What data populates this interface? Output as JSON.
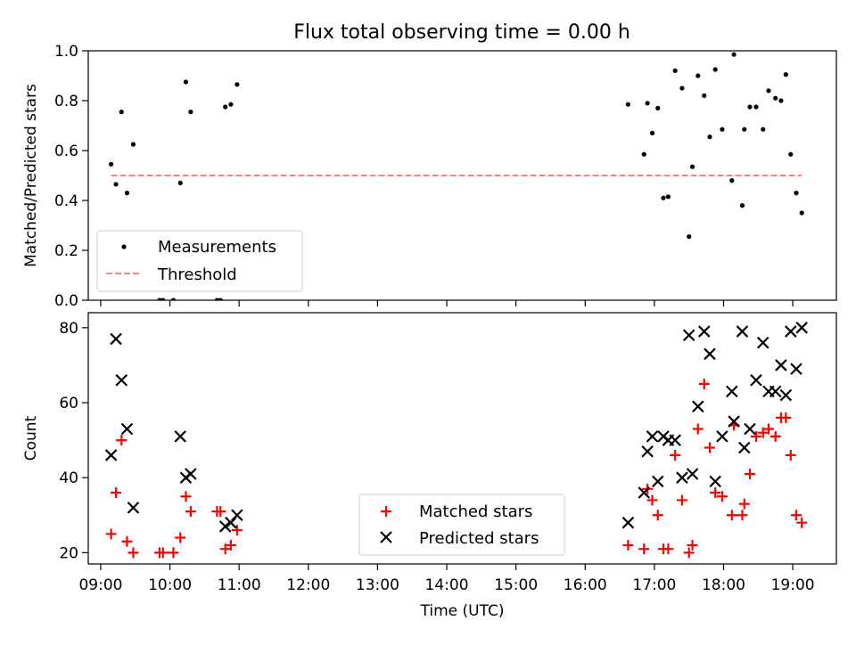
{
  "figure": {
    "title": "Flux total observing time = 0.00 h"
  },
  "colors": {
    "measurement": "#000000",
    "threshold": "#ff8080",
    "matched": "#ff0000",
    "predicted": "#000000"
  },
  "chart_data": [
    {
      "type": "scatter",
      "ylabel": "Matched/Predicted stars",
      "xlabel": "",
      "ylim": [
        0,
        1.0
      ],
      "yticks": [
        "0.0",
        "0.2",
        "0.4",
        "0.6",
        "0.8",
        "1.0"
      ],
      "x_unit": "hours UTC",
      "legend_position": "lower left",
      "series": [
        {
          "name": "Measurements",
          "marker": "dot",
          "points": [
            [
              9.15,
              0.545
            ],
            [
              9.22,
              0.465
            ],
            [
              9.3,
              0.755
            ],
            [
              9.38,
              0.43
            ],
            [
              9.47,
              0.625
            ],
            [
              9.85,
              0.0
            ],
            [
              9.9,
              0.0
            ],
            [
              10.05,
              0.0
            ],
            [
              10.15,
              0.47
            ],
            [
              10.23,
              0.875
            ],
            [
              10.3,
              0.755
            ],
            [
              10.68,
              0.0
            ],
            [
              10.73,
              0.0
            ],
            [
              10.8,
              0.775
            ],
            [
              10.88,
              0.785
            ],
            [
              10.97,
              0.865
            ],
            [
              16.62,
              0.785
            ],
            [
              16.85,
              0.585
            ],
            [
              16.9,
              0.79
            ],
            [
              16.97,
              0.67
            ],
            [
              17.05,
              0.77
            ],
            [
              17.13,
              0.41
            ],
            [
              17.2,
              0.415
            ],
            [
              17.3,
              0.92
            ],
            [
              17.4,
              0.85
            ],
            [
              17.5,
              0.255
            ],
            [
              17.55,
              0.535
            ],
            [
              17.63,
              0.9
            ],
            [
              17.72,
              0.82
            ],
            [
              17.8,
              0.655
            ],
            [
              17.88,
              0.925
            ],
            [
              17.98,
              0.685
            ],
            [
              18.12,
              0.48
            ],
            [
              18.15,
              0.985
            ],
            [
              18.27,
              0.38
            ],
            [
              18.3,
              0.685
            ],
            [
              18.38,
              0.775
            ],
            [
              18.47,
              0.775
            ],
            [
              18.57,
              0.685
            ],
            [
              18.65,
              0.84
            ],
            [
              18.75,
              0.81
            ],
            [
              18.83,
              0.8
            ],
            [
              18.9,
              0.905
            ],
            [
              18.97,
              0.585
            ],
            [
              19.05,
              0.43
            ],
            [
              19.13,
              0.35
            ]
          ]
        },
        {
          "name": "Threshold",
          "marker": "dashed-line",
          "points": [
            [
              9.15,
              0.5
            ],
            [
              19.13,
              0.5
            ]
          ]
        }
      ]
    },
    {
      "type": "scatter",
      "ylabel": "Count",
      "xlabel": "Time (UTC)",
      "xlim": [
        8.82,
        19.63
      ],
      "ylim": [
        17,
        84
      ],
      "xticks": [
        "09:00",
        "10:00",
        "11:00",
        "12:00",
        "13:00",
        "14:00",
        "15:00",
        "16:00",
        "17:00",
        "18:00",
        "19:00"
      ],
      "yticks": [
        "20",
        "40",
        "60",
        "80"
      ],
      "legend_position": "lower center",
      "series": [
        {
          "name": "Matched stars",
          "marker": "plus",
          "points": [
            [
              9.15,
              25
            ],
            [
              9.22,
              36
            ],
            [
              9.3,
              50
            ],
            [
              9.38,
              23
            ],
            [
              9.47,
              20
            ],
            [
              9.85,
              20
            ],
            [
              9.9,
              20
            ],
            [
              10.05,
              20
            ],
            [
              10.15,
              24
            ],
            [
              10.23,
              35
            ],
            [
              10.3,
              31
            ],
            [
              10.68,
              31
            ],
            [
              10.73,
              31
            ],
            [
              10.8,
              21
            ],
            [
              10.88,
              22
            ],
            [
              10.97,
              26
            ],
            [
              16.62,
              22
            ],
            [
              16.85,
              21
            ],
            [
              16.9,
              37
            ],
            [
              16.97,
              34
            ],
            [
              17.05,
              30
            ],
            [
              17.13,
              21
            ],
            [
              17.2,
              21
            ],
            [
              17.3,
              46
            ],
            [
              17.4,
              34
            ],
            [
              17.5,
              20
            ],
            [
              17.55,
              22
            ],
            [
              17.63,
              53
            ],
            [
              17.72,
              65
            ],
            [
              17.8,
              48
            ],
            [
              17.88,
              36
            ],
            [
              17.98,
              35
            ],
            [
              18.12,
              30
            ],
            [
              18.15,
              54
            ],
            [
              18.27,
              30
            ],
            [
              18.3,
              33
            ],
            [
              18.38,
              41
            ],
            [
              18.47,
              51
            ],
            [
              18.57,
              52
            ],
            [
              18.65,
              53
            ],
            [
              18.75,
              51
            ],
            [
              18.83,
              56
            ],
            [
              18.9,
              56
            ],
            [
              18.97,
              46
            ],
            [
              19.05,
              30
            ],
            [
              19.13,
              28
            ]
          ]
        },
        {
          "name": "Predicted stars",
          "marker": "x",
          "points": [
            [
              9.15,
              46
            ],
            [
              9.22,
              77
            ],
            [
              9.3,
              66
            ],
            [
              9.38,
              53
            ],
            [
              9.47,
              32
            ],
            [
              10.15,
              51
            ],
            [
              10.23,
              40
            ],
            [
              10.3,
              41
            ],
            [
              10.8,
              27
            ],
            [
              10.88,
              28
            ],
            [
              10.97,
              30
            ],
            [
              16.62,
              28
            ],
            [
              16.85,
              36
            ],
            [
              16.9,
              47
            ],
            [
              16.97,
              51
            ],
            [
              17.05,
              39
            ],
            [
              17.13,
              51
            ],
            [
              17.2,
              50
            ],
            [
              17.3,
              50
            ],
            [
              17.4,
              40
            ],
            [
              17.5,
              78
            ],
            [
              17.55,
              41
            ],
            [
              17.63,
              59
            ],
            [
              17.72,
              79
            ],
            [
              17.8,
              73
            ],
            [
              17.88,
              39
            ],
            [
              17.98,
              51
            ],
            [
              18.12,
              63
            ],
            [
              18.15,
              55
            ],
            [
              18.27,
              79
            ],
            [
              18.3,
              48
            ],
            [
              18.38,
              53
            ],
            [
              18.47,
              66
            ],
            [
              18.57,
              76
            ],
            [
              18.65,
              63
            ],
            [
              18.75,
              63
            ],
            [
              18.83,
              70
            ],
            [
              18.9,
              62
            ],
            [
              18.97,
              79
            ],
            [
              19.05,
              69
            ],
            [
              19.13,
              80
            ]
          ]
        }
      ]
    }
  ]
}
